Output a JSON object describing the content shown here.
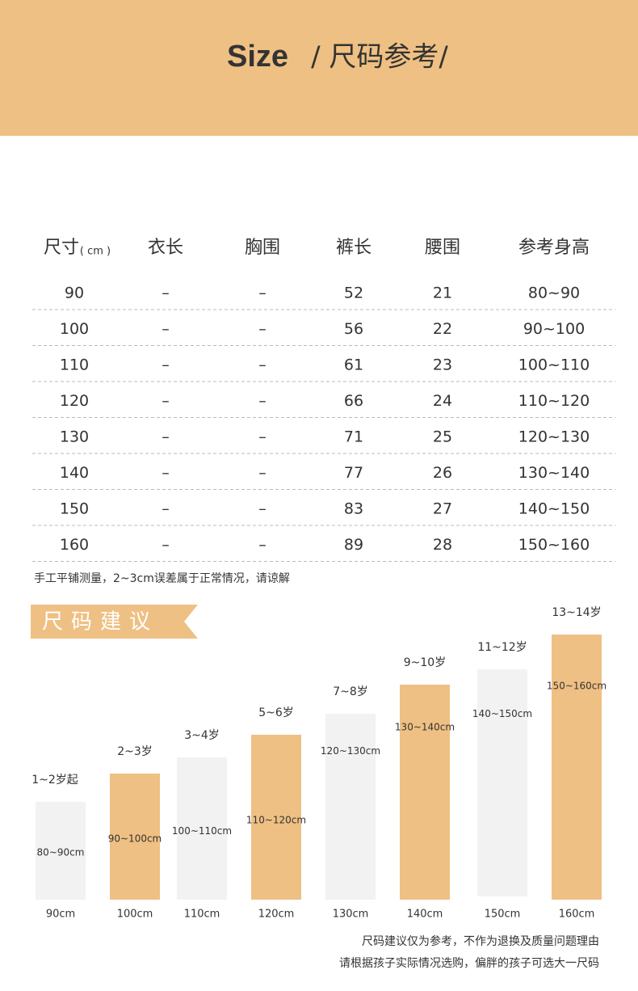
{
  "header": {
    "title": "Size",
    "subtitle": "/ 尺码参考/"
  },
  "table": {
    "headers": [
      "尺寸",
      "衣长",
      "胸围",
      "裤长",
      "腰围",
      "参考身高"
    ],
    "unit": "( cm )",
    "rows": [
      [
        "90",
        "–",
        "–",
        "52",
        "21",
        "80~90"
      ],
      [
        "100",
        "–",
        "–",
        "56",
        "22",
        "90~100"
      ],
      [
        "110",
        "–",
        "–",
        "61",
        "23",
        "100~110"
      ],
      [
        "120",
        "–",
        "–",
        "66",
        "24",
        "110~120"
      ],
      [
        "130",
        "–",
        "–",
        "71",
        "25",
        "120~130"
      ],
      [
        "140",
        "–",
        "–",
        "77",
        "26",
        "130~140"
      ],
      [
        "150",
        "–",
        "–",
        "83",
        "27",
        "140~150"
      ],
      [
        "160",
        "–",
        "–",
        "89",
        "28",
        "150~160"
      ]
    ]
  },
  "note": "手工平铺测量，2~3cm误差属于正常情况，请谅解",
  "section_title": "尺码建议",
  "suggestions": [
    {
      "age": "1~2岁起",
      "range": "80~90cm",
      "size": "90cm"
    },
    {
      "age": "2~3岁",
      "range": "90~100cm",
      "size": "100cm"
    },
    {
      "age": "3~4岁",
      "range": "100~110cm",
      "size": "110cm"
    },
    {
      "age": "5~6岁",
      "range": "110~120cm",
      "size": "120cm"
    },
    {
      "age": "7~8岁",
      "range": "120~130cm",
      "size": "130cm"
    },
    {
      "age": "9~10岁",
      "range": "130~140cm",
      "size": "140cm"
    },
    {
      "age": "11~12岁",
      "range": "140~150cm",
      "size": "150cm"
    },
    {
      "age": "13~14岁",
      "range": "150~160cm",
      "size": "160cm"
    }
  ],
  "footer": [
    "尺码建议仅为参考，不作为退换及质量问题理由",
    "请根据孩子实际情况选购，偏胖的孩子可选大一尺码"
  ]
}
